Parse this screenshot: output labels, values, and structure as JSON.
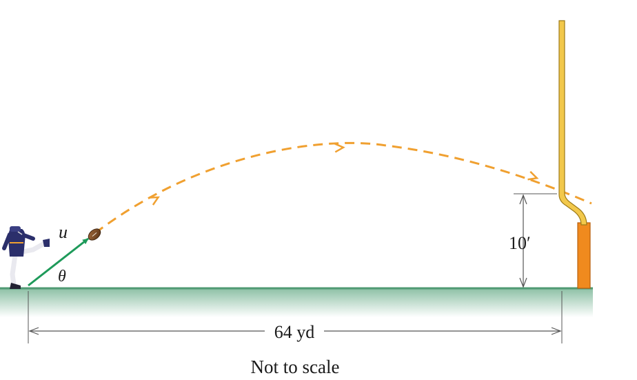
{
  "labels": {
    "speed": "u",
    "angle": "θ",
    "crossbar_height": "10′",
    "distance": "64 yd",
    "note": "Not to scale"
  },
  "colors": {
    "trajectory": "#F0A030",
    "velocity_vector": "#1E9A5A",
    "ground": "#6FAE8C",
    "ground_fade": "#E8F2EC",
    "upright": "#F2C84B",
    "post_pad": "#F08A1E",
    "ball": "#7A4A24",
    "dimension_line": "#555555",
    "player_uniform": "#2B2F6B"
  },
  "icons": {
    "kicker": "football-kicker-figure",
    "ball": "football",
    "goalpost": "goalpost"
  }
}
